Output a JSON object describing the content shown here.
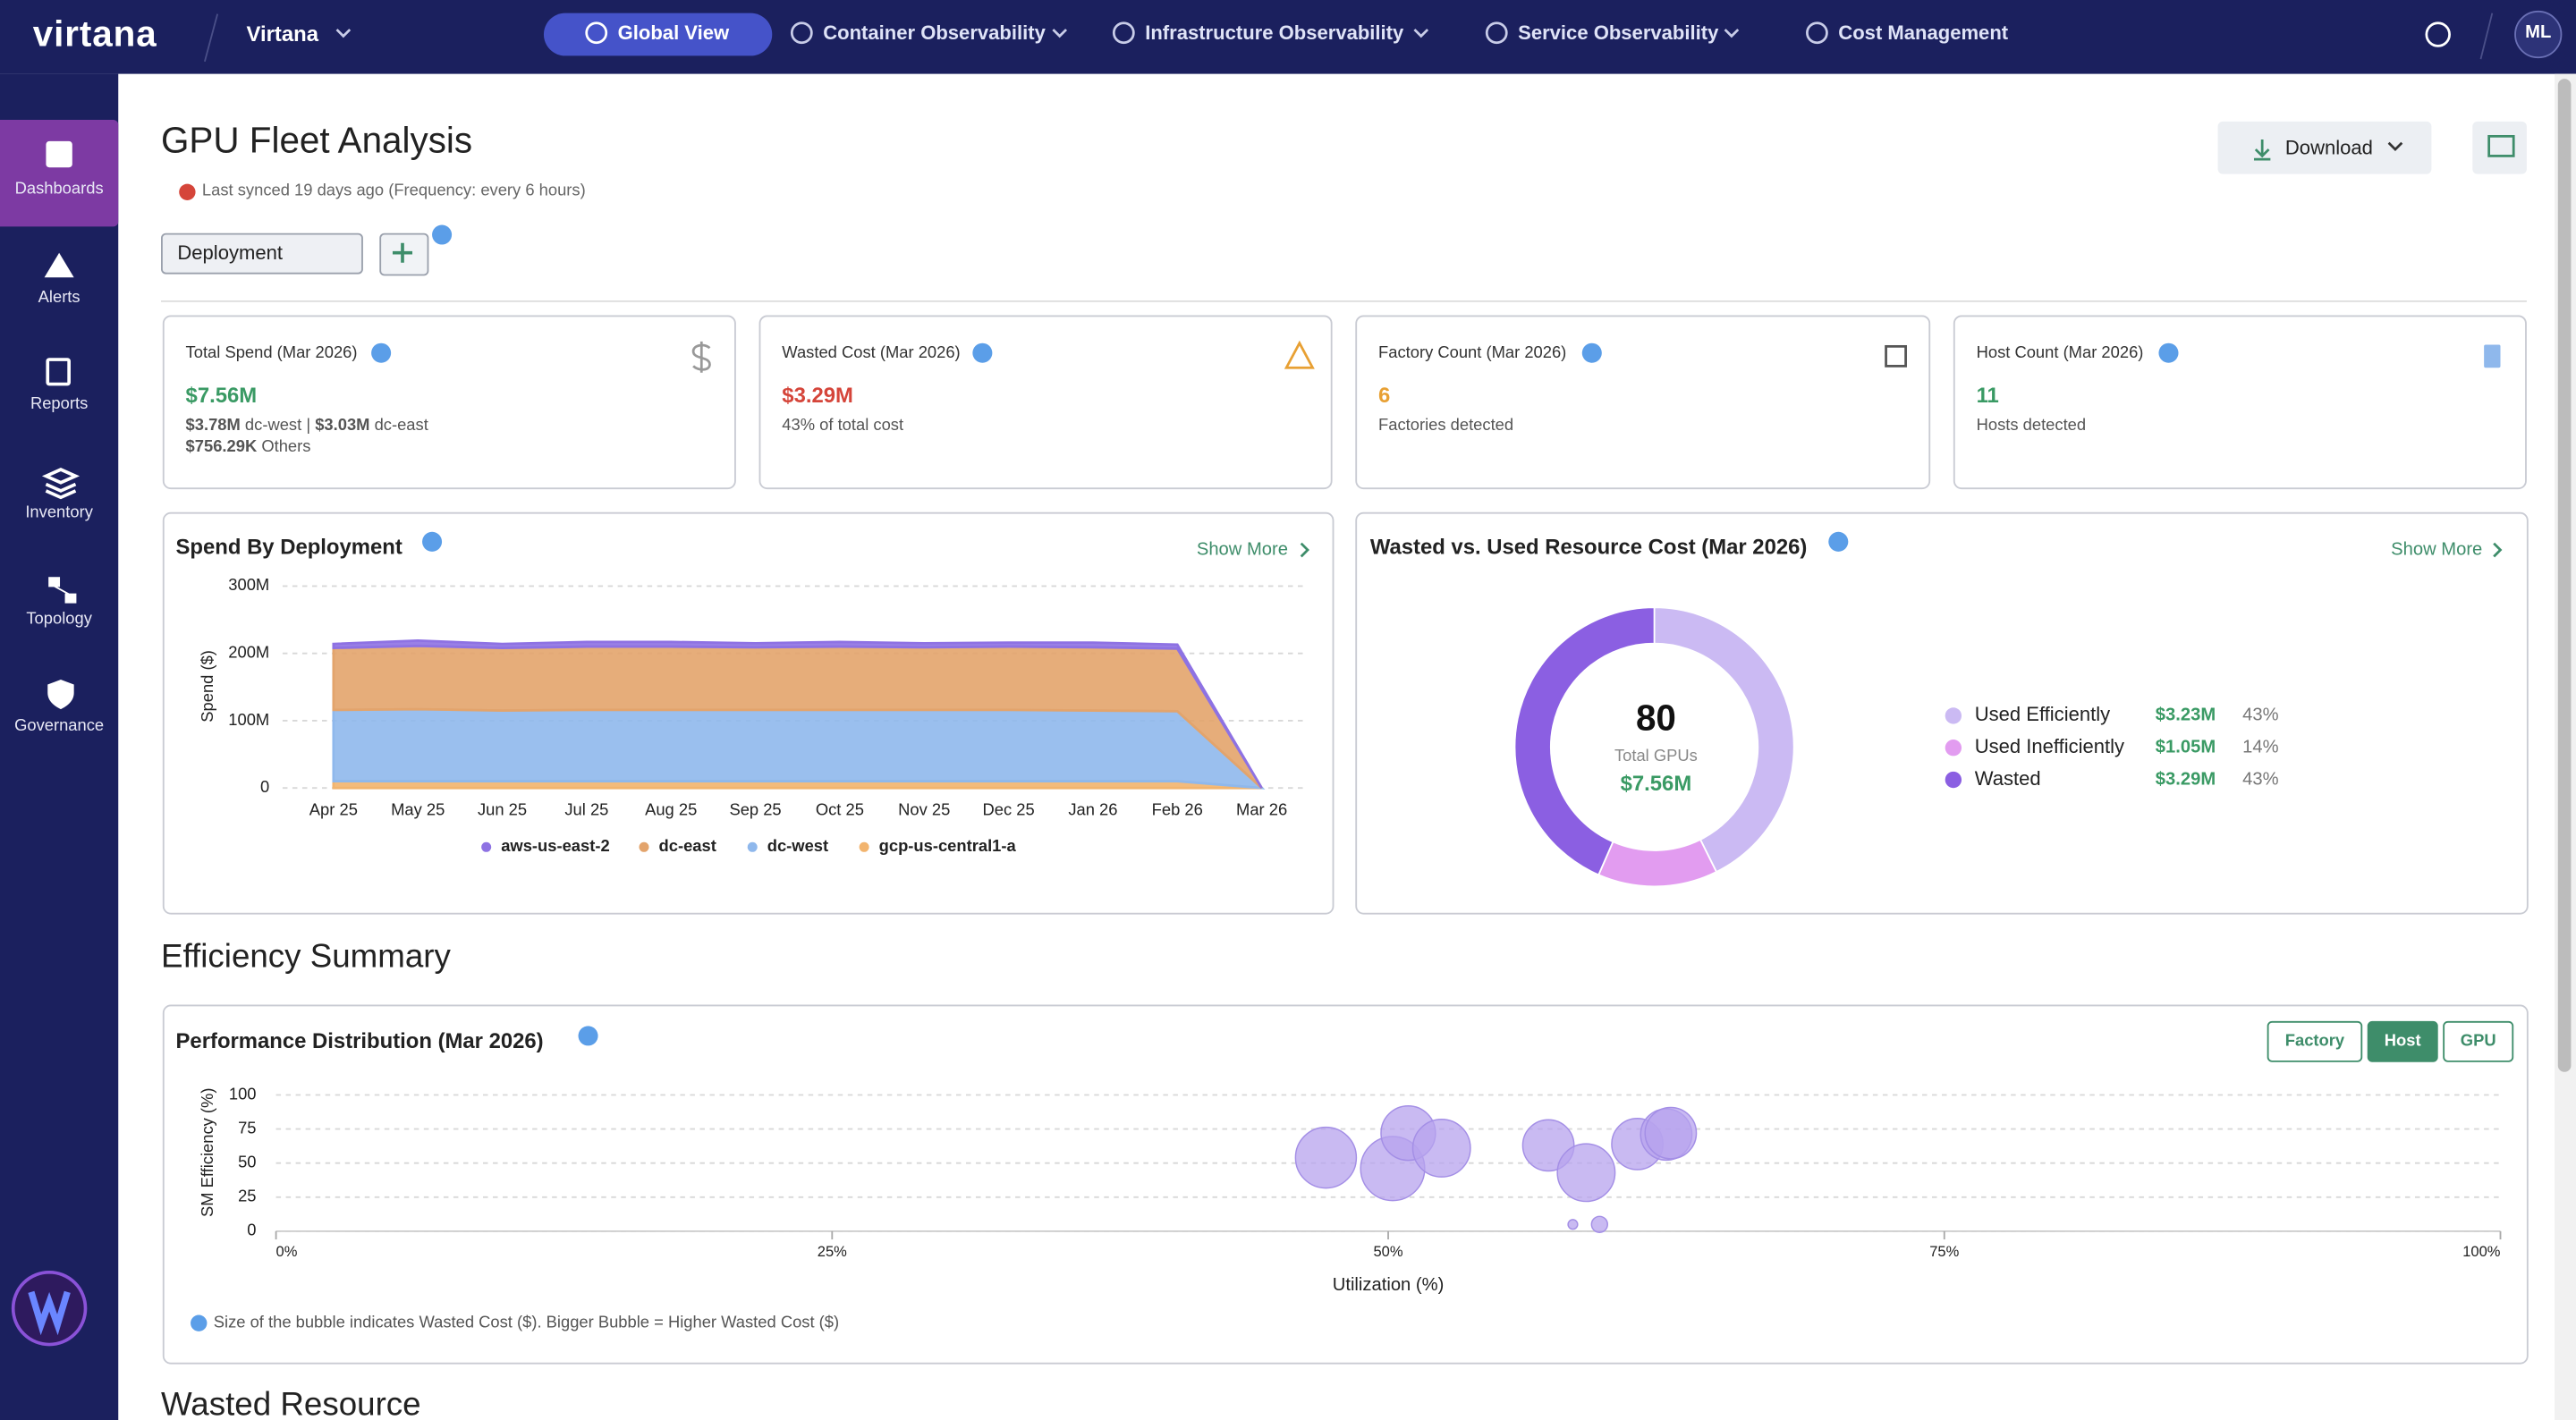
{
  "nav": {
    "brand": "virtana",
    "tenant": "Virtana",
    "items": [
      "Global View",
      "Container Observability",
      "Infrastructure Observability",
      "Service Observability",
      "Cost Management"
    ],
    "user": "ML"
  },
  "sidebar": {
    "items": [
      "Dashboards",
      "Alerts",
      "Reports",
      "Inventory",
      "Topology",
      "Governance"
    ]
  },
  "header": {
    "title": "GPU Fleet Analysis",
    "sync": "Last synced 19 days ago (Frequency: every 6 hours)",
    "filter": "Deployment",
    "download": "Download"
  },
  "kpis": [
    {
      "label": "Total Spend (Mar 2026)",
      "value": "$7.56M",
      "breakdown": [
        {
          "amount": "$3.78M",
          "name": "dc-west"
        },
        {
          "amount": "$3.03M",
          "name": "dc-east"
        },
        {
          "amount": "$756.29K",
          "name": "Others"
        }
      ]
    },
    {
      "label": "Wasted Cost (Mar 2026)",
      "value": "$3.29M",
      "note": "43% of total cost"
    },
    {
      "label": "Factory Count (Mar 2026)",
      "value": "6",
      "note": "Factories detected"
    },
    {
      "label": "Host Count (Mar 2026)",
      "value": "11",
      "note": "Hosts detected"
    }
  ],
  "show_more": "Show More",
  "sections": {
    "efficiency": "Efficiency Summary",
    "wasted": "Wasted Resource"
  },
  "chart_data": [
    {
      "type": "area",
      "title": "Spend By Deployment",
      "y_label": "Spend ($)",
      "stacked": true,
      "grid": true,
      "categories": [
        "Apr 25",
        "May 25",
        "Jun 25",
        "Jul 25",
        "Aug 25",
        "Sep 25",
        "Oct 25",
        "Nov 25",
        "Dec 25",
        "Jan 26",
        "Feb 26",
        "Mar 26"
      ],
      "series": [
        {
          "name": "aws-us-east-2",
          "color": "#8e72e3",
          "values": [
            6000000,
            8000000,
            6000000,
            7000000,
            7000000,
            6000000,
            7000000,
            6000000,
            6000000,
            7000000,
            6000000,
            0
          ]
        },
        {
          "name": "dc-east",
          "color": "#e3a46c",
          "values": [
            92000000,
            94000000,
            93000000,
            94000000,
            94000000,
            93000000,
            94000000,
            93000000,
            94000000,
            94000000,
            93000000,
            0
          ]
        },
        {
          "name": "dc-west",
          "color": "#8fb8ec",
          "values": [
            106000000,
            107000000,
            105000000,
            106000000,
            106000000,
            106000000,
            106000000,
            106000000,
            106000000,
            105000000,
            104000000,
            0
          ]
        },
        {
          "name": "gcp-us-central1-a",
          "color": "#f2b46e",
          "values": [
            10000000,
            10000000,
            10000000,
            10000000,
            10000000,
            10000000,
            10000000,
            10000000,
            10000000,
            10000000,
            10000000,
            0
          ]
        }
      ],
      "ylim": [
        0,
        300000000
      ],
      "yticks": [
        0,
        {
          "value": 100000000,
          "label": "100M"
        },
        {
          "value": 200000000,
          "label": "200M"
        },
        {
          "value": 300000000,
          "label": "300M"
        }
      ]
    },
    {
      "type": "donut",
      "title": "Wasted vs. Used Resource Cost (Mar 2026)",
      "center_value": "80",
      "center_label": "Total GPUs",
      "center_total": "$7.56M",
      "categories": [
        "Used Efficiently",
        "Used Inefficiently",
        "Wasted"
      ],
      "values": [
        3230000,
        1050000,
        3290000
      ],
      "value_labels": [
        "$3.23M",
        "$1.05M",
        "$3.29M"
      ],
      "percent_labels": [
        "43%",
        "14%",
        "43%"
      ],
      "colors": [
        "#cbbaf3",
        "#e29cf0",
        "#8b5fe2"
      ]
    },
    {
      "type": "scatter",
      "title": "Performance Distribution (Mar 2026)",
      "x_label": "Utilization (%)",
      "y_label": "SM Efficiency (%)",
      "toggles": [
        "Factory",
        "Host",
        "GPU"
      ],
      "note": "Size of the bubble indicates Wasted Cost ($). Bigger Bubble = Higher Wasted Cost ($)",
      "color": "#b7a3ee",
      "grid": true,
      "x": [
        47.2,
        50.2,
        50.9,
        52.4,
        57.2,
        58.9,
        61.2,
        62.5,
        62.7,
        58.3,
        59.5
      ],
      "y": [
        54,
        46,
        72,
        61,
        63,
        43,
        64,
        71,
        72,
        5,
        5
      ],
      "sizes": [
        431000,
        478000,
        345000,
        387000,
        306000,
        387000,
        306000,
        306000,
        306000,
        10700,
        29900
      ],
      "xlim": [
        0,
        100
      ],
      "xticks": [
        {
          "value": 0,
          "label": "0%"
        },
        {
          "value": 25,
          "label": "25%"
        },
        {
          "value": 50,
          "label": "50%"
        },
        {
          "value": 75,
          "label": "75%"
        },
        {
          "value": 100,
          "label": "100%"
        }
      ],
      "ylim": [
        0,
        100
      ],
      "yticks": [
        0,
        25,
        50,
        75,
        100
      ]
    }
  ]
}
